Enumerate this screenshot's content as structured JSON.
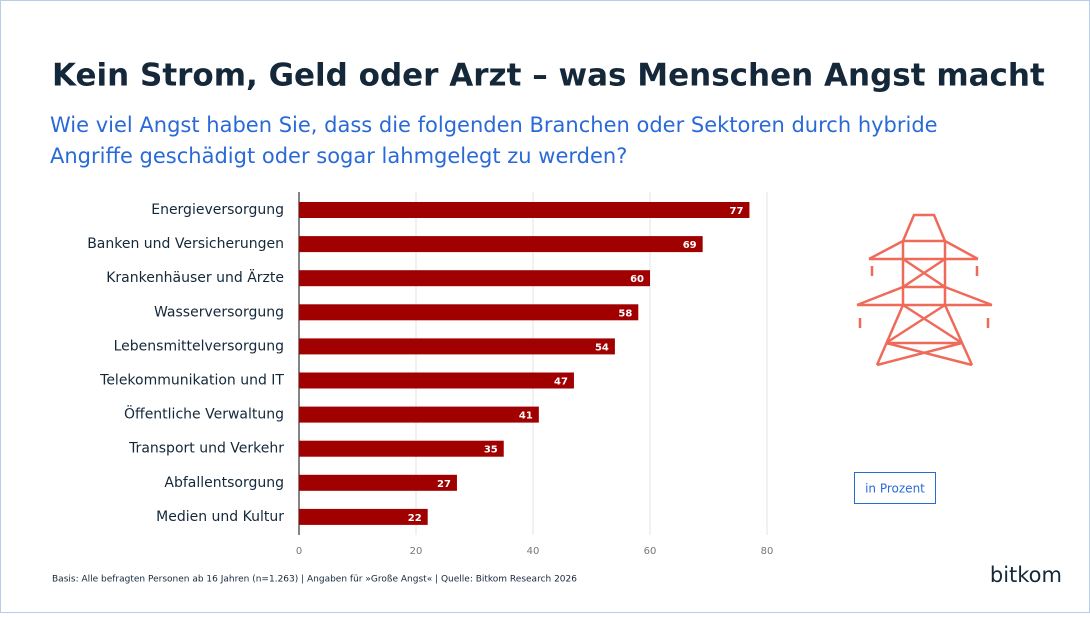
{
  "chart_data": {
    "type": "bar",
    "orientation": "horizontal",
    "title": "Kein Strom, Geld oder Arzt – was Menschen Angst macht",
    "subtitle": "Wie viel Angst haben Sie, dass die folgenden Branchen oder Sektoren durch hybride Angriffe geschädigt oder sogar lahmgelegt zu werden?",
    "categories": [
      "Energieversorgung",
      "Banken und Versicherungen",
      "Krankenhäuser und Ärzte",
      "Wasserversorgung",
      "Lebensmittelversorgung",
      "Telekommunikation und IT",
      "Öffentliche Verwaltung",
      "Transport und Verkehr",
      "Abfallentsorgung",
      "Medien und Kultur"
    ],
    "values": [
      77,
      69,
      60,
      58,
      54,
      47,
      41,
      35,
      27,
      22
    ],
    "color": "#a00000",
    "xlim": [
      0,
      80
    ],
    "xticks": [
      0,
      20,
      40,
      60,
      80
    ],
    "grid": true,
    "unit_note": "in Prozent",
    "source": "Basis: Alle befragten Personen ab 16 Jahren (n=1.263) | Angaben für »Große Angst« | Quelle: Bitkom Research 2026",
    "logo": "bitkom"
  }
}
